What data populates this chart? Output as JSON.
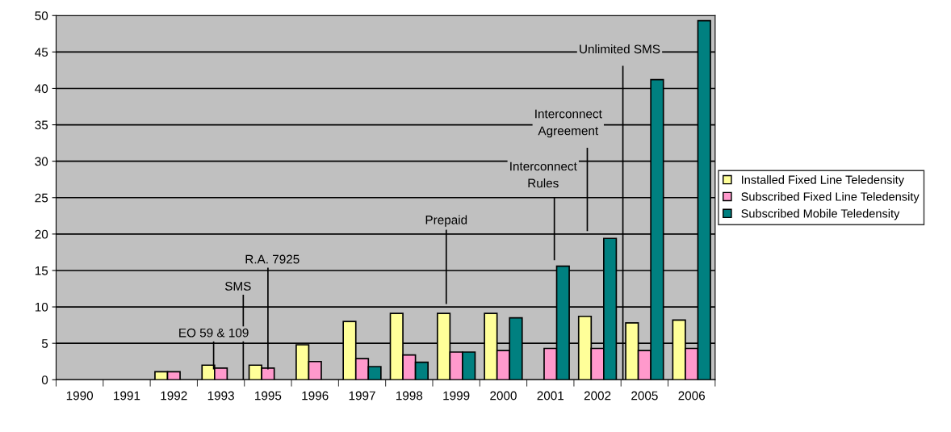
{
  "chart_data": {
    "type": "bar",
    "categories": [
      "1990",
      "1991",
      "1992",
      "1993",
      "1995",
      "1996",
      "1997",
      "1998",
      "1999",
      "2000",
      "2001",
      "2002",
      "2005",
      "2006"
    ],
    "series": [
      {
        "name": "Installed Fixed Line Teledensity",
        "color": "#ffff99",
        "values": [
          null,
          null,
          1.1,
          2.0,
          2.0,
          4.8,
          8.0,
          9.1,
          9.1,
          9.1,
          null,
          8.7,
          7.8,
          8.2
        ]
      },
      {
        "name": "Subscribed Fixed Line Teledensity",
        "color": "#ff99cc",
        "values": [
          null,
          null,
          1.1,
          1.6,
          1.6,
          2.5,
          2.9,
          3.4,
          3.8,
          4.0,
          4.3,
          4.3,
          4.0,
          4.3
        ]
      },
      {
        "name": "Subscribed Mobile Teledensity",
        "color": "#008080",
        "values": [
          null,
          null,
          null,
          null,
          null,
          null,
          1.8,
          2.4,
          3.8,
          8.5,
          15.6,
          19.4,
          41.2,
          49.3
        ]
      }
    ],
    "ylim": [
      0,
      50
    ],
    "yticks": [
      0,
      5,
      10,
      15,
      20,
      25,
      30,
      35,
      40,
      45,
      50
    ],
    "grid": "y",
    "legend": "right",
    "annotations": [
      "EO 59 & 109",
      "SMS",
      {
        "text": "R.A. 7925",
        "x": "1995",
        "y": 1.5
      },
      "Prepaid",
      "Interconnect\nRules",
      "Interconnect\nAgreement",
      "Unlimited SMS"
    ]
  }
}
